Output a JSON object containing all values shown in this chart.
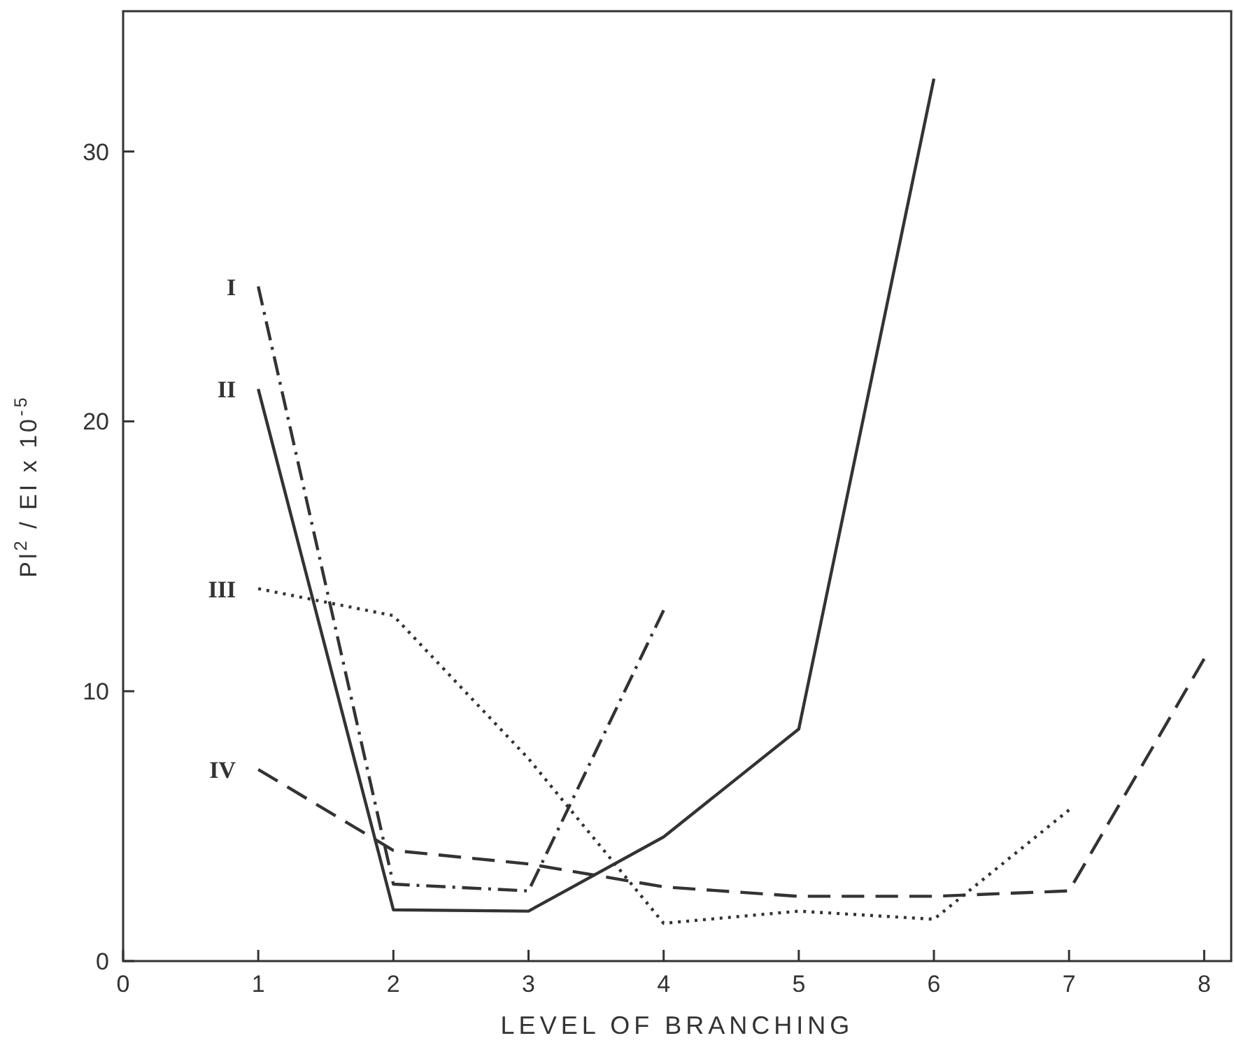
{
  "chart_data": {
    "type": "line",
    "xlabel": "LEVEL OF BRANCHING",
    "ylabel": "Pl$^{2}$ / EI x 10$^{-5}$",
    "xlim": [
      0,
      8.2
    ],
    "ylim": [
      0,
      35.2
    ],
    "xticks": [
      0,
      1,
      2,
      3,
      4,
      5,
      6,
      7,
      8
    ],
    "yticks": [
      0,
      10,
      20,
      30
    ],
    "grid": false,
    "marker": "none",
    "series": [
      {
        "name": "I",
        "color": "#333333",
        "line_style": "dashdot",
        "x": [
          1,
          2,
          3,
          4
        ],
        "values": [
          25.0,
          2.85,
          2.6,
          13.0
        ]
      },
      {
        "name": "II",
        "color": "#333333",
        "line_style": "solid",
        "x": [
          1,
          2,
          3,
          4,
          5,
          6
        ],
        "values": [
          21.2,
          1.9,
          1.85,
          4.6,
          8.6,
          32.7
        ]
      },
      {
        "name": "III",
        "color": "#333333",
        "line_style": "dotted",
        "x": [
          1,
          2,
          3,
          4,
          5,
          6,
          7
        ],
        "values": [
          13.8,
          12.8,
          7.5,
          1.4,
          1.85,
          1.55,
          5.6
        ]
      },
      {
        "name": "IV",
        "color": "#333333",
        "line_style": "dashed",
        "x": [
          1,
          2,
          3,
          4,
          5,
          6,
          7,
          8
        ],
        "values": [
          7.1,
          4.1,
          3.6,
          2.75,
          2.4,
          2.4,
          2.6,
          11.2
        ]
      }
    ]
  }
}
